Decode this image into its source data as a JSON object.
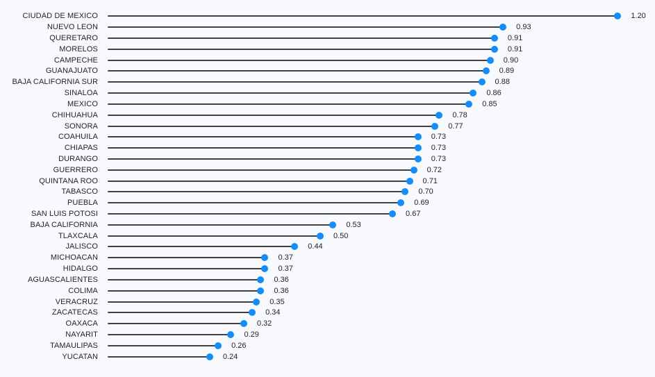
{
  "chart_data": {
    "type": "bar",
    "variant": "lollipop-horizontal",
    "title": "",
    "xlabel": "",
    "ylabel": "",
    "xlim": [
      0,
      1.28
    ],
    "grid": false,
    "legend": "none",
    "value_label_position": "right-of-marker",
    "categories": [
      "CIUDAD DE MEXICO",
      "NUEVO LEON",
      "QUERETARO",
      "MORELOS",
      "CAMPECHE",
      "GUANAJUATO",
      "BAJA CALIFORNIA SUR",
      "SINALOA",
      "MEXICO",
      "CHIHUAHUA",
      "SONORA",
      "COAHUILA",
      "CHIAPAS",
      "DURANGO",
      "GUERRERO",
      "QUINTANA ROO",
      "TABASCO",
      "PUEBLA",
      "SAN LUIS POTOSI",
      "BAJA CALIFORNIA",
      "TLAXCALA",
      "JALISCO",
      "MICHOACAN",
      "HIDALGO",
      "AGUASCALIENTES",
      "COLIMA",
      "VERACRUZ",
      "ZACATECAS",
      "OAXACA",
      "NAYARIT",
      "TAMAULIPAS",
      "YUCATAN"
    ],
    "values": [
      1.2,
      0.93,
      0.91,
      0.91,
      0.9,
      0.89,
      0.88,
      0.86,
      0.85,
      0.78,
      0.77,
      0.73,
      0.73,
      0.73,
      0.72,
      0.71,
      0.7,
      0.69,
      0.67,
      0.53,
      0.5,
      0.44,
      0.37,
      0.37,
      0.36,
      0.36,
      0.35,
      0.34,
      0.32,
      0.29,
      0.26,
      0.24
    ],
    "value_labels": [
      "1.20",
      "0.93",
      "0.91",
      "0.91",
      "0.90",
      "0.89",
      "0.88",
      "0.86",
      "0.85",
      "0.78",
      "0.77",
      "0.73",
      "0.73",
      "0.73",
      "0.72",
      "0.71",
      "0.70",
      "0.69",
      "0.67",
      "0.53",
      "0.50",
      "0.44",
      "0.37",
      "0.37",
      "0.36",
      "0.36",
      "0.35",
      "0.34",
      "0.32",
      "0.29",
      "0.26",
      "0.24"
    ],
    "colors": {
      "marker": "#118DFF",
      "stem": "#404040",
      "background": "#F7F9FC",
      "text": "#252423"
    }
  }
}
